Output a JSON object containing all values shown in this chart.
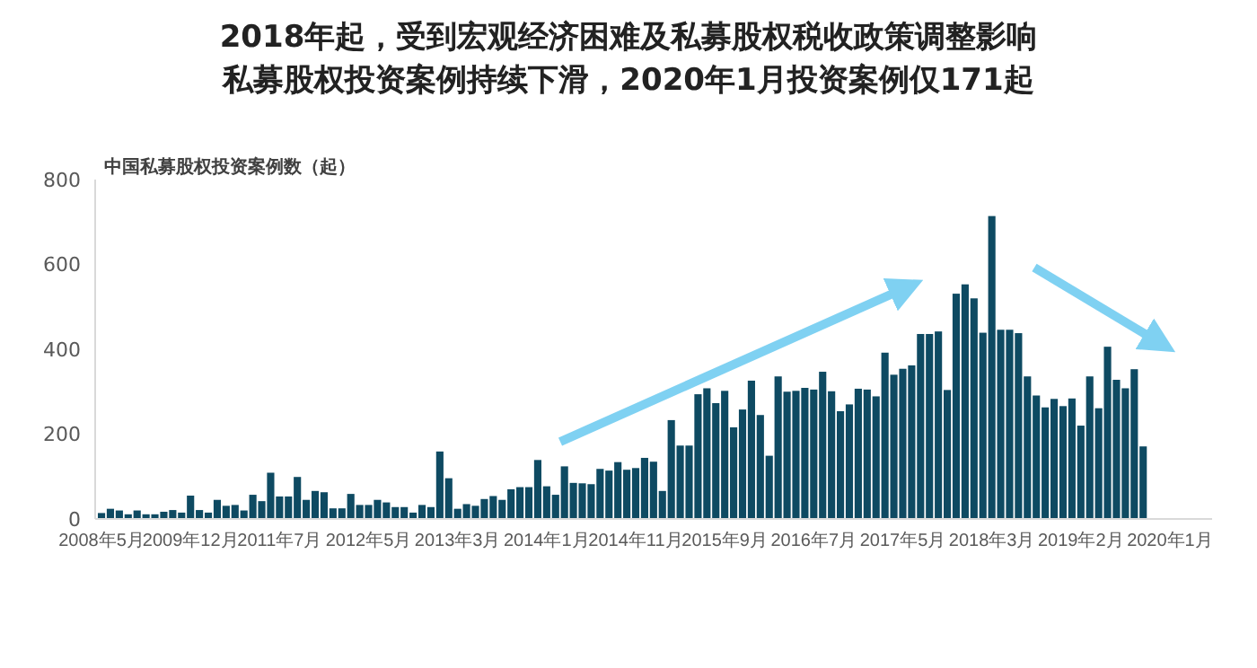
{
  "chart_data": {
    "type": "bar",
    "title": "2018年起，受到宏观经济困难及私募股权税收政策调整影响",
    "subtitle": "私募股权投资案例持续下滑，2020年1月投资案例仅171起",
    "ylabel": "中国私募股权投资案例数（起）",
    "categories": [
      "2008年5月",
      null,
      null,
      null,
      null,
      null,
      null,
      null,
      null,
      null,
      "2009年12月",
      null,
      null,
      null,
      null,
      null,
      null,
      null,
      null,
      null,
      "2011年7月",
      null,
      null,
      null,
      null,
      null,
      null,
      null,
      null,
      null,
      "2012年5月",
      null,
      null,
      null,
      null,
      null,
      null,
      null,
      null,
      null,
      "2013年3月",
      null,
      null,
      null,
      null,
      null,
      null,
      null,
      null,
      null,
      "2014年1月",
      null,
      null,
      null,
      null,
      null,
      null,
      null,
      null,
      null,
      "2014年11月",
      null,
      null,
      null,
      null,
      null,
      null,
      null,
      null,
      null,
      "2015年9月",
      null,
      null,
      null,
      null,
      null,
      null,
      null,
      null,
      null,
      "2016年7月",
      null,
      null,
      null,
      null,
      null,
      null,
      null,
      null,
      null,
      "2017年5月",
      null,
      null,
      null,
      null,
      null,
      null,
      null,
      null,
      null,
      "2018年3月",
      null,
      null,
      null,
      null,
      null,
      null,
      null,
      null,
      null,
      "2019年2月",
      null,
      null,
      null,
      null,
      null,
      null,
      null,
      null,
      null,
      "2020年1月"
    ],
    "values": [
      14,
      24,
      20,
      11,
      20,
      11,
      11,
      17,
      21,
      15,
      55,
      21,
      15,
      45,
      31,
      33,
      20,
      57,
      42,
      109,
      53,
      53,
      99,
      45,
      66,
      63,
      25,
      25,
      59,
      33,
      33,
      45,
      39,
      28,
      28,
      15,
      33,
      28,
      159,
      96,
      24,
      35,
      31,
      47,
      54,
      45,
      70,
      75,
      75,
      139,
      77,
      57,
      124,
      85,
      84,
      82,
      118,
      114,
      134,
      116,
      120,
      144,
      135,
      66,
      233,
      173,
      173,
      294,
      308,
      273,
      302,
      216,
      258,
      326,
      245,
      149,
      336,
      300,
      302,
      309,
      305,
      347,
      301,
      254,
      270,
      307,
      305,
      289,
      392,
      340,
      354,
      362,
      436,
      436,
      442,
      304,
      531,
      553,
      520,
      439,
      714,
      446,
      446,
      438,
      336,
      291,
      263,
      283,
      266,
      284,
      220,
      336,
      261,
      406,
      328,
      308,
      353,
      171,
      null,
      null,
      null
    ],
    "color": "#0e4a62",
    "ylim": [
      0,
      800
    ],
    "yticks": [
      0,
      200,
      400,
      600,
      800
    ],
    "grid": false
  }
}
